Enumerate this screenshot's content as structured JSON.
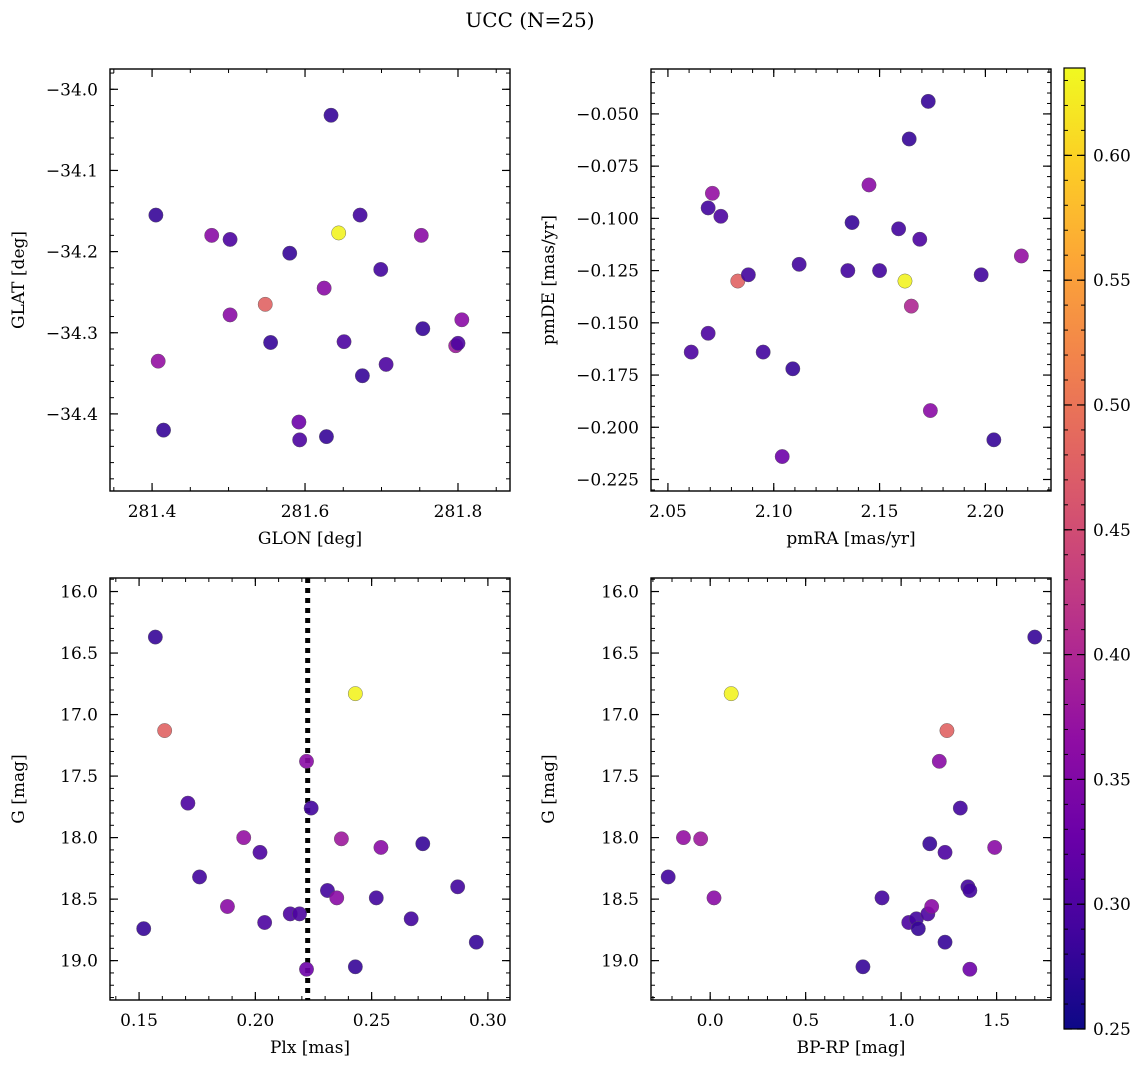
{
  "figure": {
    "title": "UCC (N=25)"
  },
  "colorbar": {
    "cmap": "plasma",
    "range": [
      0.25,
      0.635
    ],
    "ticks": [
      0.25,
      0.3,
      0.35,
      0.4,
      0.45,
      0.5,
      0.55,
      0.6
    ],
    "tick_labels": [
      "0.25",
      "0.30",
      "0.35",
      "0.40",
      "0.45",
      "0.50",
      "0.55",
      "0.60"
    ]
  },
  "chart_data": [
    {
      "type": "scatter",
      "id": "glon-glat",
      "xlabel": "GLON [deg]",
      "ylabel": "GLAT [deg]",
      "xlim": [
        281.345,
        281.868
      ],
      "ylim": [
        -34.495,
        -33.975
      ],
      "invert_y": false,
      "xticks": [
        281.4,
        281.6,
        281.8
      ],
      "xtick_labels": [
        "281.4",
        "281.6",
        "281.8"
      ],
      "yticks": [
        -34.0,
        -34.1,
        -34.2,
        -34.3,
        -34.4
      ],
      "ytick_labels": [
        "−34.0",
        "−34.1",
        "−34.2",
        "−34.3",
        "−34.4"
      ],
      "x_minor_step": 0.05,
      "y_minor_step": 0.02,
      "points": [
        {
          "x": 281.405,
          "y": -34.155,
          "c": 0.28
        },
        {
          "x": 281.408,
          "y": -34.335,
          "c": 0.37
        },
        {
          "x": 281.415,
          "y": -34.42,
          "c": 0.28
        },
        {
          "x": 281.478,
          "y": -34.18,
          "c": 0.36
        },
        {
          "x": 281.502,
          "y": -34.185,
          "c": 0.3
        },
        {
          "x": 281.502,
          "y": -34.278,
          "c": 0.36
        },
        {
          "x": 281.548,
          "y": -34.265,
          "c": 0.48
        },
        {
          "x": 281.555,
          "y": -34.312,
          "c": 0.28
        },
        {
          "x": 281.58,
          "y": -34.202,
          "c": 0.28
        },
        {
          "x": 281.592,
          "y": -34.41,
          "c": 0.33
        },
        {
          "x": 281.593,
          "y": -34.432,
          "c": 0.3
        },
        {
          "x": 281.625,
          "y": -34.245,
          "c": 0.36
        },
        {
          "x": 281.628,
          "y": -34.428,
          "c": 0.28
        },
        {
          "x": 281.634,
          "y": -34.032,
          "c": 0.28
        },
        {
          "x": 281.644,
          "y": -34.177,
          "c": 0.63
        },
        {
          "x": 281.651,
          "y": -34.311,
          "c": 0.3
        },
        {
          "x": 281.672,
          "y": -34.155,
          "c": 0.29
        },
        {
          "x": 281.675,
          "y": -34.353,
          "c": 0.28
        },
        {
          "x": 281.699,
          "y": -34.222,
          "c": 0.29
        },
        {
          "x": 281.706,
          "y": -34.339,
          "c": 0.3
        },
        {
          "x": 281.752,
          "y": -34.18,
          "c": 0.36
        },
        {
          "x": 281.754,
          "y": -34.295,
          "c": 0.28
        },
        {
          "x": 281.797,
          "y": -34.316,
          "c": 0.38
        },
        {
          "x": 281.8,
          "y": -34.313,
          "c": 0.3
        },
        {
          "x": 281.805,
          "y": -34.284,
          "c": 0.36
        }
      ]
    },
    {
      "type": "scatter",
      "id": "pmra-pmde",
      "xlabel": "pmRA [mas/yr]",
      "ylabel": "pmDE [mas/yr]",
      "xlim": [
        2.042,
        2.231
      ],
      "ylim": [
        -0.2305,
        -0.0285
      ],
      "invert_y": false,
      "xticks": [
        2.05,
        2.1,
        2.15,
        2.2
      ],
      "xtick_labels": [
        "2.05",
        "2.10",
        "2.15",
        "2.20"
      ],
      "yticks": [
        -0.05,
        -0.075,
        -0.1,
        -0.125,
        -0.15,
        -0.175,
        -0.2,
        -0.225
      ],
      "ytick_labels": [
        "−0.050",
        "−0.075",
        "−0.100",
        "−0.125",
        "−0.150",
        "−0.175",
        "−0.200",
        "−0.225"
      ],
      "x_minor_step": 0.01,
      "y_minor_step": 0.005,
      "points": [
        {
          "x": 2.061,
          "y": -0.164,
          "c": 0.3
        },
        {
          "x": 2.069,
          "y": -0.155,
          "c": 0.3
        },
        {
          "x": 2.069,
          "y": -0.095,
          "c": 0.29
        },
        {
          "x": 2.071,
          "y": -0.088,
          "c": 0.37
        },
        {
          "x": 2.075,
          "y": -0.099,
          "c": 0.3
        },
        {
          "x": 2.083,
          "y": -0.13,
          "c": 0.48
        },
        {
          "x": 2.088,
          "y": -0.127,
          "c": 0.29
        },
        {
          "x": 2.095,
          "y": -0.164,
          "c": 0.29
        },
        {
          "x": 2.104,
          "y": -0.214,
          "c": 0.33
        },
        {
          "x": 2.109,
          "y": -0.172,
          "c": 0.28
        },
        {
          "x": 2.112,
          "y": -0.122,
          "c": 0.29
        },
        {
          "x": 2.135,
          "y": -0.125,
          "c": 0.29
        },
        {
          "x": 2.137,
          "y": -0.102,
          "c": 0.28
        },
        {
          "x": 2.145,
          "y": -0.084,
          "c": 0.36
        },
        {
          "x": 2.15,
          "y": -0.125,
          "c": 0.29
        },
        {
          "x": 2.159,
          "y": -0.105,
          "c": 0.29
        },
        {
          "x": 2.162,
          "y": -0.13,
          "c": 0.63
        },
        {
          "x": 2.164,
          "y": -0.062,
          "c": 0.28
        },
        {
          "x": 2.165,
          "y": -0.142,
          "c": 0.4
        },
        {
          "x": 2.169,
          "y": -0.11,
          "c": 0.3
        },
        {
          "x": 2.173,
          "y": -0.044,
          "c": 0.28
        },
        {
          "x": 2.174,
          "y": -0.192,
          "c": 0.36
        },
        {
          "x": 2.198,
          "y": -0.127,
          "c": 0.29
        },
        {
          "x": 2.204,
          "y": -0.206,
          "c": 0.28
        },
        {
          "x": 2.217,
          "y": -0.118,
          "c": 0.37
        }
      ]
    },
    {
      "type": "scatter",
      "id": "plx-g",
      "xlabel": "Plx [mas]",
      "ylabel": "G [mag]",
      "xlim": [
        0.1375,
        0.3095
      ],
      "ylim": [
        19.32,
        15.89
      ],
      "invert_y": true,
      "xticks": [
        0.15,
        0.2,
        0.25,
        0.3
      ],
      "xtick_labels": [
        "0.15",
        "0.20",
        "0.25",
        "0.30"
      ],
      "yticks": [
        16.0,
        16.5,
        17.0,
        17.5,
        18.0,
        18.5,
        19.0
      ],
      "ytick_labels": [
        "16.0",
        "16.5",
        "17.0",
        "17.5",
        "18.0",
        "18.5",
        "19.0"
      ],
      "x_minor_step": 0.01,
      "y_minor_step": 0.1,
      "vline": {
        "x": 0.2225,
        "style": "dotted"
      },
      "points": [
        {
          "x": 0.152,
          "y": 18.74,
          "c": 0.28
        },
        {
          "x": 0.157,
          "y": 16.37,
          "c": 0.28
        },
        {
          "x": 0.161,
          "y": 17.13,
          "c": 0.48
        },
        {
          "x": 0.171,
          "y": 17.72,
          "c": 0.3
        },
        {
          "x": 0.176,
          "y": 18.32,
          "c": 0.29
        },
        {
          "x": 0.188,
          "y": 18.56,
          "c": 0.36
        },
        {
          "x": 0.195,
          "y": 18.0,
          "c": 0.37
        },
        {
          "x": 0.202,
          "y": 18.12,
          "c": 0.3
        },
        {
          "x": 0.204,
          "y": 18.69,
          "c": 0.3
        },
        {
          "x": 0.215,
          "y": 18.62,
          "c": 0.3
        },
        {
          "x": 0.219,
          "y": 18.62,
          "c": 0.3
        },
        {
          "x": 0.222,
          "y": 17.38,
          "c": 0.36
        },
        {
          "x": 0.222,
          "y": 19.07,
          "c": 0.33
        },
        {
          "x": 0.224,
          "y": 17.76,
          "c": 0.29
        },
        {
          "x": 0.231,
          "y": 18.43,
          "c": 0.29
        },
        {
          "x": 0.235,
          "y": 18.49,
          "c": 0.36
        },
        {
          "x": 0.237,
          "y": 18.01,
          "c": 0.38
        },
        {
          "x": 0.243,
          "y": 19.05,
          "c": 0.28
        },
        {
          "x": 0.243,
          "y": 16.83,
          "c": 0.63
        },
        {
          "x": 0.252,
          "y": 18.49,
          "c": 0.29
        },
        {
          "x": 0.254,
          "y": 18.08,
          "c": 0.36
        },
        {
          "x": 0.267,
          "y": 18.66,
          "c": 0.29
        },
        {
          "x": 0.272,
          "y": 18.05,
          "c": 0.28
        },
        {
          "x": 0.287,
          "y": 18.4,
          "c": 0.29
        },
        {
          "x": 0.295,
          "y": 18.85,
          "c": 0.28
        }
      ]
    },
    {
      "type": "scatter",
      "id": "bprp-g",
      "xlabel": "BP-RP [mag]",
      "ylabel": "G [mag]",
      "xlim": [
        -0.31,
        1.785
      ],
      "ylim": [
        19.32,
        15.89
      ],
      "invert_y": true,
      "xticks": [
        0.0,
        0.5,
        1.0,
        1.5
      ],
      "xtick_labels": [
        "0.0",
        "0.5",
        "1.0",
        "1.5"
      ],
      "yticks": [
        16.0,
        16.5,
        17.0,
        17.5,
        18.0,
        18.5,
        19.0
      ],
      "ytick_labels": [
        "16.0",
        "16.5",
        "17.0",
        "17.5",
        "18.0",
        "18.5",
        "19.0"
      ],
      "x_minor_step": 0.1,
      "y_minor_step": 0.1,
      "points": [
        {
          "x": -0.22,
          "y": 18.32,
          "c": 0.29
        },
        {
          "x": -0.14,
          "y": 18.0,
          "c": 0.37
        },
        {
          "x": -0.05,
          "y": 18.01,
          "c": 0.38
        },
        {
          "x": 0.02,
          "y": 18.49,
          "c": 0.36
        },
        {
          "x": 0.11,
          "y": 16.83,
          "c": 0.63
        },
        {
          "x": 0.8,
          "y": 19.05,
          "c": 0.28
        },
        {
          "x": 0.9,
          "y": 18.49,
          "c": 0.29
        },
        {
          "x": 1.04,
          "y": 18.69,
          "c": 0.3
        },
        {
          "x": 1.08,
          "y": 18.66,
          "c": 0.29
        },
        {
          "x": 1.09,
          "y": 18.74,
          "c": 0.28
        },
        {
          "x": 1.14,
          "y": 18.62,
          "c": 0.3
        },
        {
          "x": 1.15,
          "y": 18.05,
          "c": 0.28
        },
        {
          "x": 1.16,
          "y": 18.56,
          "c": 0.36
        },
        {
          "x": 1.2,
          "y": 17.38,
          "c": 0.36
        },
        {
          "x": 1.23,
          "y": 18.12,
          "c": 0.3
        },
        {
          "x": 1.23,
          "y": 18.85,
          "c": 0.28
        },
        {
          "x": 1.24,
          "y": 17.13,
          "c": 0.48
        },
        {
          "x": 1.31,
          "y": 17.76,
          "c": 0.29
        },
        {
          "x": 1.35,
          "y": 18.4,
          "c": 0.29
        },
        {
          "x": 1.36,
          "y": 19.07,
          "c": 0.33
        },
        {
          "x": 1.36,
          "y": 18.43,
          "c": 0.29
        },
        {
          "x": 1.49,
          "y": 18.08,
          "c": 0.36
        },
        {
          "x": 1.7,
          "y": 16.37,
          "c": 0.28
        }
      ]
    }
  ]
}
